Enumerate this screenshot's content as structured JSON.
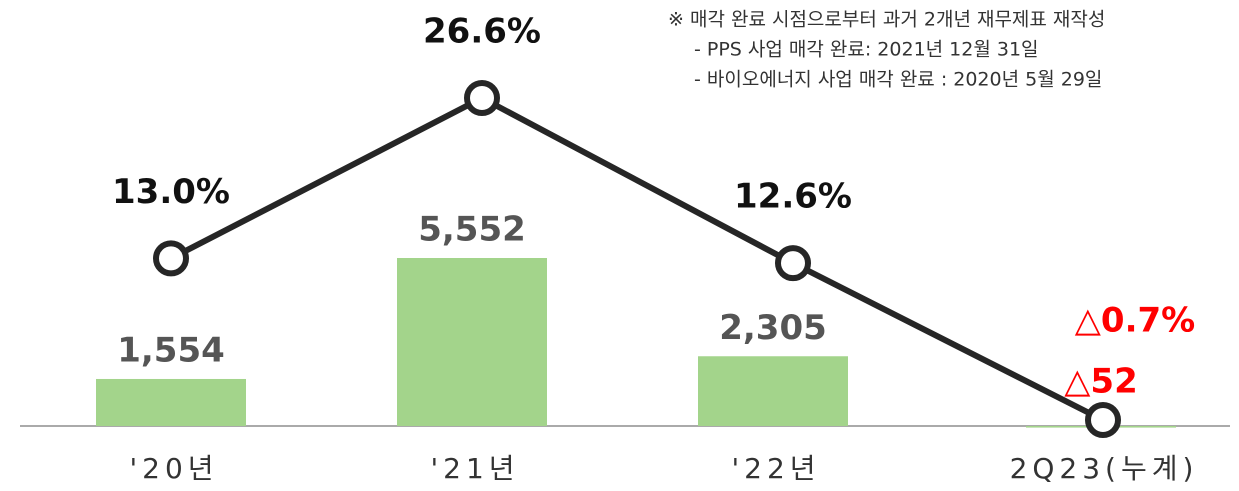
{
  "chart_data": {
    "type": "bar",
    "categories": [
      "'20년",
      "'21년",
      "'22년",
      "2Q23(누계)"
    ],
    "series": [
      {
        "type": "bar",
        "color": "#a3d48b",
        "values": [
          1554,
          5552,
          2305,
          -52
        ],
        "value_labels": [
          "1,554",
          "5,552",
          "2,305",
          "△52"
        ]
      },
      {
        "type": "line",
        "axis": "y2",
        "color": "#262626",
        "values": [
          13.0,
          26.6,
          12.6,
          -0.7
        ],
        "value_labels": [
          "13.0%",
          "26.6%",
          "12.6%",
          "△0.7%"
        ]
      }
    ],
    "negative_color": "#ff0000",
    "notes": [
      "※ 매각 완료 시점으로부터 과거 2개년 재무제표 재작성",
      "- PPS 사업 매각  완료: 2021년 12월 31일",
      "- 바이오에너지 사업 매각 완료  : 2020년 5월 29일"
    ]
  }
}
